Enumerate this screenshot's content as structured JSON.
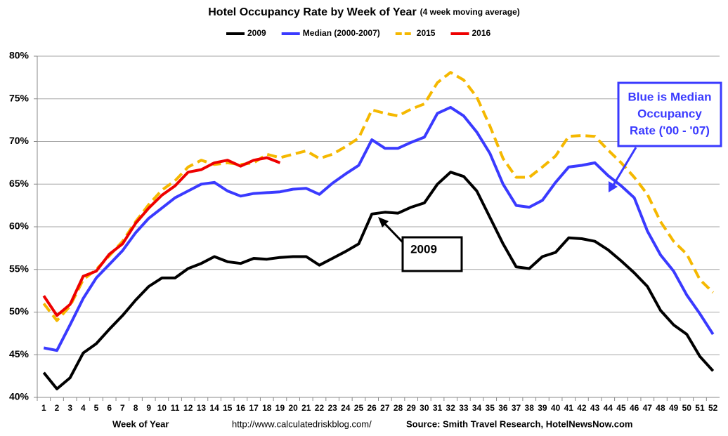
{
  "chart_data": {
    "type": "line",
    "title": "Hotel Occupancy Rate by  Week of Year",
    "subtitle": "(4 week moving average)",
    "x_label": "Week of Year",
    "footer_url": "http://www.calculatedriskblog.com/",
    "source": "Source: Smith Travel Research, HotelNewsNow.com",
    "categories": [
      "1",
      "2",
      "3",
      "4",
      "5",
      "6",
      "7",
      "8",
      "9",
      "10",
      "11",
      "12",
      "13",
      "14",
      "15",
      "16",
      "17",
      "18",
      "19",
      "20",
      "21",
      "22",
      "23",
      "24",
      "25",
      "26",
      "27",
      "28",
      "29",
      "30",
      "31",
      "32",
      "33",
      "34",
      "35",
      "36",
      "37",
      "38",
      "39",
      "40",
      "41",
      "42",
      "43",
      "44",
      "45",
      "46",
      "47",
      "48",
      "49",
      "50",
      "51",
      "52"
    ],
    "series": [
      {
        "name": "2009",
        "color": "#000000",
        "dashed": false,
        "values": [
          42.9,
          41.0,
          42.3,
          45.2,
          46.3,
          48.0,
          49.6,
          51.4,
          53.0,
          54.0,
          54.0,
          55.1,
          55.7,
          56.5,
          55.9,
          55.7,
          56.3,
          56.2,
          56.4,
          56.5,
          56.5,
          55.5,
          56.3,
          57.1,
          58.0,
          61.5,
          61.7,
          61.6,
          62.3,
          62.8,
          65.0,
          66.4,
          65.9,
          64.2,
          61.1,
          58.0,
          55.3,
          55.1,
          56.5,
          57.0,
          58.7,
          58.6,
          58.3,
          57.3,
          56.0,
          54.6,
          53.0,
          50.2,
          48.5,
          47.4,
          44.8,
          43.1
        ]
      },
      {
        "name": "Median (2000-2007)",
        "color": "#3a3aff",
        "dashed": false,
        "values": [
          45.8,
          45.5,
          48.5,
          51.6,
          54.0,
          55.6,
          57.2,
          59.3,
          61.0,
          62.2,
          63.4,
          64.2,
          65.0,
          65.2,
          64.2,
          63.6,
          63.9,
          64.0,
          64.1,
          64.4,
          64.5,
          63.8,
          65.1,
          66.2,
          67.2,
          70.2,
          69.2,
          69.2,
          69.9,
          70.5,
          73.3,
          74.0,
          73.0,
          71.1,
          68.6,
          65.0,
          62.5,
          62.3,
          63.1,
          65.2,
          67.0,
          67.2,
          67.5,
          66.0,
          64.8,
          63.4,
          59.5,
          56.7,
          54.8,
          52.0,
          49.8,
          47.4
        ]
      },
      {
        "name": "2015",
        "color": "#f5b800",
        "dashed": true,
        "values": [
          51.0,
          49.0,
          50.7,
          53.8,
          55.0,
          56.6,
          58.3,
          60.6,
          62.6,
          64.3,
          65.4,
          67.0,
          67.8,
          67.3,
          67.5,
          67.3,
          67.5,
          68.5,
          68.1,
          68.5,
          68.9,
          68.0,
          68.5,
          69.4,
          70.4,
          73.7,
          73.3,
          73.0,
          73.8,
          74.4,
          76.9,
          78.1,
          77.2,
          75.2,
          71.8,
          68.0,
          65.8,
          65.8,
          67.0,
          68.3,
          70.6,
          70.7,
          70.6,
          69.0,
          67.5,
          65.8,
          63.8,
          60.6,
          58.3,
          56.8,
          53.8,
          52.3
        ]
      },
      {
        "name": "2016",
        "color": "#ee0000",
        "dashed": false,
        "values": [
          51.9,
          49.6,
          50.9,
          54.2,
          54.8,
          56.8,
          58.0,
          60.4,
          62.2,
          63.7,
          64.8,
          66.4,
          66.7,
          67.5,
          67.8,
          67.1,
          67.8,
          68.1,
          67.5,
          null,
          null,
          null,
          null,
          null,
          null,
          null,
          null,
          null,
          null,
          null,
          null,
          null,
          null,
          null,
          null,
          null,
          null,
          null,
          null,
          null,
          null,
          null,
          null,
          null,
          null,
          null,
          null,
          null,
          null,
          null,
          null,
          null
        ]
      }
    ],
    "ylim": [
      40,
      80
    ],
    "yticks": [
      {
        "value": 40,
        "label": "40%"
      },
      {
        "value": 45,
        "label": "45%"
      },
      {
        "value": 50,
        "label": "50%"
      },
      {
        "value": 55,
        "label": "55%"
      },
      {
        "value": 60,
        "label": "60%"
      },
      {
        "value": 65,
        "label": "65%"
      },
      {
        "value": 70,
        "label": "70%"
      },
      {
        "value": 75,
        "label": "75%"
      },
      {
        "value": 80,
        "label": "80%"
      }
    ],
    "grid": true,
    "legend": "top",
    "annotations": [
      {
        "lines": [
          "Blue is Median",
          "Occupancy",
          "Rate ('00 - '07)"
        ],
        "color": "#3a3aff"
      },
      {
        "lines": [
          "2009"
        ],
        "color": "#000000"
      }
    ]
  }
}
